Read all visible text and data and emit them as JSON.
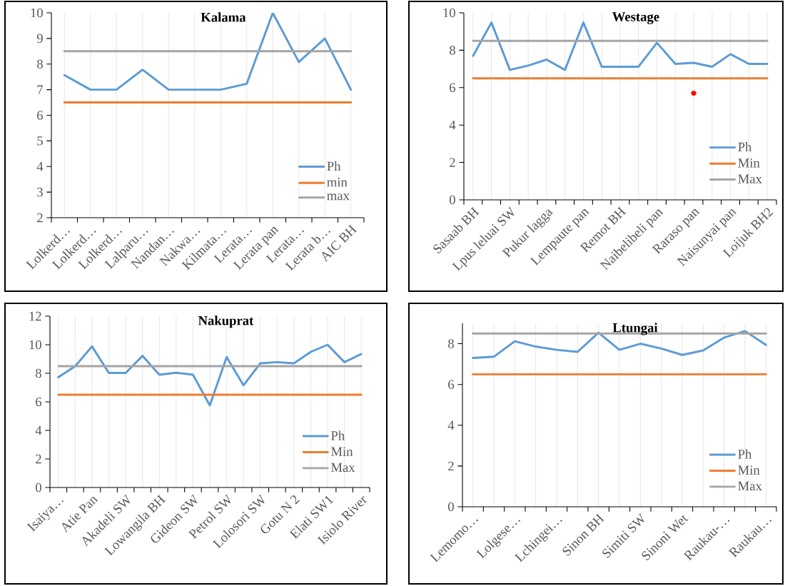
{
  "chart_data": [
    {
      "type": "line",
      "title": "Kalama",
      "categories": [
        "Lolkerd…",
        "Lolkerd…",
        "Lolkerd…",
        "Lalparu…",
        "Nandan…",
        "Nakwa…",
        "Kilmata…",
        "Lerata…",
        "Lerata pan",
        "Lerata…",
        "Lerata b…",
        "AIC BH"
      ],
      "series": [
        {
          "name": "Ph",
          "color": "#5b9bd5",
          "values": [
            7.57,
            7,
            7,
            7.78,
            7,
            7,
            7,
            7.23,
            10,
            8.08,
            9,
            7
          ]
        },
        {
          "name": "min",
          "color": "#ed7d31",
          "values": [
            6.5,
            6.5,
            6.5,
            6.5,
            6.5,
            6.5,
            6.5,
            6.5,
            6.5,
            6.5,
            6.5,
            6.5
          ]
        },
        {
          "name": "max",
          "color": "#a5a5a5",
          "values": [
            8.5,
            8.5,
            8.5,
            8.5,
            8.5,
            8.5,
            8.5,
            8.5,
            8.5,
            8.5,
            8.5,
            8.5
          ]
        }
      ],
      "ylim": [
        2,
        10
      ],
      "yticks": [
        2,
        3,
        4,
        5,
        6,
        7,
        8,
        9,
        10
      ],
      "grid": "x",
      "legend": "bottom right"
    },
    {
      "type": "line",
      "title": "Westage",
      "categories": [
        "Sasaab BH",
        null,
        "Lpus leluai SW",
        null,
        "Pukur lagga",
        null,
        "Lempaute pan",
        null,
        "Remot BH",
        null,
        "Naibelibeli pan",
        null,
        "Raraso pan",
        null,
        "Naisunyai pan",
        null,
        "Loijuk BH2"
      ],
      "series": [
        {
          "name": "Ph",
          "color": "#5b9bd5",
          "values": [
            7.7,
            9.48,
            6.95,
            7.18,
            7.5,
            6.95,
            9.48,
            7.12,
            7.12,
            7.12,
            8.4,
            7.27,
            7.33,
            7.12,
            7.79,
            7.27,
            7.27
          ]
        },
        {
          "name": "Min",
          "color": "#ed7d31",
          "values": [
            6.5,
            6.5,
            6.5,
            6.5,
            6.5,
            6.5,
            6.5,
            6.5,
            6.5,
            6.5,
            6.5,
            6.5,
            6.5,
            6.5,
            6.5,
            6.5,
            6.5
          ]
        },
        {
          "name": "Max",
          "color": "#a5a5a5",
          "values": [
            8.5,
            8.5,
            8.5,
            8.5,
            8.5,
            8.5,
            8.5,
            8.5,
            8.5,
            8.5,
            8.5,
            8.5,
            8.5,
            8.5,
            8.5,
            8.5,
            8.5
          ]
        },
        {
          "type": "scatter",
          "color": "#ff0000",
          "marker": "circle",
          "x": [
            "Raraso pan"
          ],
          "values": [
            5.7
          ]
        }
      ],
      "ylim": [
        0,
        10
      ],
      "yticks": [
        0,
        2,
        4,
        6,
        8,
        10
      ],
      "grid": "x",
      "legend": "bottom right"
    },
    {
      "type": "line",
      "title": "Nakuprat",
      "categories": [
        "Isaiya…",
        null,
        "Atie Pan",
        null,
        "Akadeli SW",
        null,
        "Lowangila BH",
        null,
        "Gideon SW",
        null,
        "Petrol SW",
        null,
        "Lolosori SW",
        null,
        "Gotu N 2",
        null,
        "Elati SW1",
        null,
        "Isiolo River"
      ],
      "series": [
        {
          "name": "Ph",
          "color": "#5b9bd5",
          "values": [
            7.72,
            8.5,
            9.88,
            8.02,
            8.02,
            9.22,
            7.9,
            8.04,
            7.9,
            5.75,
            9.14,
            7.16,
            8.7,
            8.78,
            8.7,
            9.5,
            10,
            8.78,
            9.35
          ]
        },
        {
          "name": "Min",
          "color": "#ed7d31",
          "values": [
            6.5,
            6.5,
            6.5,
            6.5,
            6.5,
            6.5,
            6.5,
            6.5,
            6.5,
            6.5,
            6.5,
            6.5,
            6.5,
            6.5,
            6.5,
            6.5,
            6.5,
            6.5,
            6.5
          ]
        },
        {
          "name": "Max",
          "color": "#a5a5a5",
          "values": [
            8.5,
            8.5,
            8.5,
            8.5,
            8.5,
            8.5,
            8.5,
            8.5,
            8.5,
            8.5,
            8.5,
            8.5,
            8.5,
            8.5,
            8.5,
            8.5,
            8.5,
            8.5,
            8.5
          ]
        }
      ],
      "ylim": [
        0,
        12
      ],
      "yticks": [
        0,
        2,
        4,
        6,
        8,
        10,
        12
      ],
      "grid": "x",
      "legend": "bottom right"
    },
    {
      "type": "line",
      "title": "Ltungai",
      "categories": [
        "Lemomo…",
        null,
        "Lolgese…",
        null,
        "Lchingei…",
        null,
        "Sinon BH",
        null,
        "Simiti SW",
        null,
        "Sinoni Wet",
        null,
        "Raukau-…",
        null,
        "Raukau…"
      ],
      "series": [
        {
          "name": "Ph",
          "color": "#5b9bd5",
          "values": [
            7.3,
            7.36,
            8.12,
            7.86,
            7.7,
            7.6,
            8.54,
            7.7,
            8.0,
            7.76,
            7.45,
            7.67,
            8.3,
            8.62,
            7.94
          ]
        },
        {
          "name": "Min",
          "color": "#ed7d31",
          "values": [
            6.5,
            6.5,
            6.5,
            6.5,
            6.5,
            6.5,
            6.5,
            6.5,
            6.5,
            6.5,
            6.5,
            6.5,
            6.5,
            6.5,
            6.5
          ]
        },
        {
          "name": "Max",
          "color": "#a5a5a5",
          "values": [
            8.5,
            8.5,
            8.5,
            8.5,
            8.5,
            8.5,
            8.5,
            8.5,
            8.5,
            8.5,
            8.5,
            8.5,
            8.5,
            8.5,
            8.5
          ]
        }
      ],
      "ylim": [
        0,
        9
      ],
      "yticks": [
        0,
        2,
        4,
        6,
        8
      ],
      "grid": "x",
      "legend": "bottom right"
    }
  ]
}
